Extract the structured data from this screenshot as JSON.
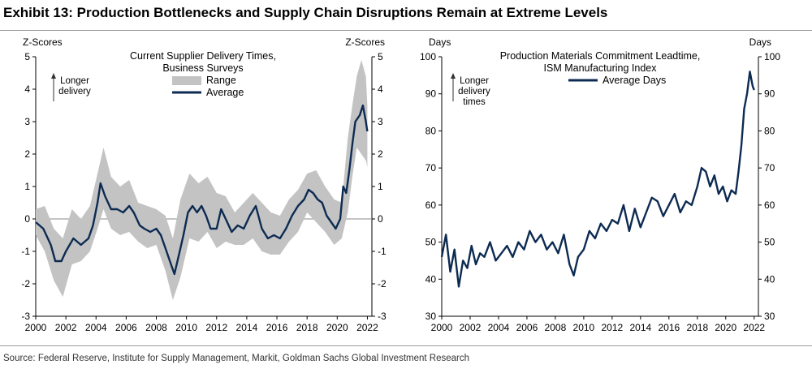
{
  "exhibit_title": "Exhibit 13: Production Bottlenecks and Supply Chain Disruptions Remain at Extreme Levels",
  "source_note": "Source: Federal Reserve, Institute for Supply Management, Markit, Goldman Sachs Global Investment Research",
  "colors": {
    "line": "#0d2b52",
    "range": "#c3c3c3",
    "axis": "#000000",
    "zero": "#888888",
    "rule": "#9a9a9a"
  },
  "chart_data": [
    {
      "type": "area",
      "title": "Current Supplier Delivery Times, Business Surveys",
      "title_lines": [
        "Current Supplier Delivery Times,",
        "Business Surveys"
      ],
      "ylabel_left": "Z-Scores",
      "ylabel_right": "Z-Scores",
      "annotation": [
        "Longer",
        "delivery"
      ],
      "legend": [
        {
          "name": "Range",
          "style": "band"
        },
        {
          "name": "Average",
          "style": "line"
        }
      ],
      "legend_position": "top-center",
      "xlim": [
        2000,
        2022.3
      ],
      "ylim": [
        -3,
        5
      ],
      "xticks": [
        "2000",
        "2002",
        "2004",
        "2006",
        "2008",
        "2010",
        "2012",
        "2014",
        "2016",
        "2018",
        "2020",
        "2022"
      ],
      "yticks": [
        "-3",
        "-2",
        "-1",
        "0",
        "1",
        "2",
        "3",
        "4",
        "5"
      ],
      "zero_line": true,
      "series": [
        {
          "name": "Average",
          "x": [
            2000.0,
            2000.5,
            2001.0,
            2001.3,
            2001.7,
            2002.0,
            2002.5,
            2003.0,
            2003.5,
            2003.8,
            2004.1,
            2004.3,
            2004.6,
            2005.0,
            2005.4,
            2005.8,
            2006.2,
            2006.5,
            2006.9,
            2007.2,
            2007.6,
            2008.0,
            2008.3,
            2008.6,
            2008.9,
            2009.2,
            2009.5,
            2009.8,
            2010.1,
            2010.4,
            2010.7,
            2011.0,
            2011.3,
            2011.6,
            2012.0,
            2012.3,
            2012.7,
            2013.0,
            2013.4,
            2013.8,
            2014.2,
            2014.6,
            2015.0,
            2015.4,
            2015.8,
            2016.2,
            2016.6,
            2017.0,
            2017.4,
            2017.8,
            2018.1,
            2018.4,
            2018.7,
            2019.0,
            2019.3,
            2019.6,
            2019.9,
            2020.2,
            2020.4,
            2020.6,
            2020.8,
            2021.0,
            2021.2,
            2021.5,
            2021.7,
            2021.9,
            2022.0
          ],
          "values": [
            -0.1,
            -0.3,
            -0.8,
            -1.3,
            -1.3,
            -1.0,
            -0.6,
            -0.8,
            -0.6,
            -0.2,
            0.5,
            1.1,
            0.7,
            0.3,
            0.3,
            0.2,
            0.4,
            0.2,
            -0.2,
            -0.3,
            -0.4,
            -0.3,
            -0.5,
            -0.9,
            -1.3,
            -1.7,
            -1.1,
            -0.5,
            0.2,
            0.4,
            0.2,
            0.4,
            0.1,
            -0.3,
            -0.3,
            0.3,
            -0.1,
            -0.4,
            -0.2,
            -0.3,
            0.1,
            0.4,
            -0.3,
            -0.6,
            -0.5,
            -0.6,
            -0.3,
            0.1,
            0.4,
            0.6,
            0.9,
            0.8,
            0.6,
            0.5,
            0.1,
            -0.1,
            -0.3,
            0.0,
            1.0,
            0.8,
            1.5,
            2.3,
            3.0,
            3.2,
            3.5,
            3.0,
            2.7
          ]
        },
        {
          "name": "Range",
          "x": [
            2000.0,
            2000.6,
            2001.2,
            2001.8,
            2002.4,
            2003.0,
            2003.6,
            2004.1,
            2004.5,
            2005.0,
            2005.6,
            2006.2,
            2006.8,
            2007.4,
            2008.0,
            2008.6,
            2009.1,
            2009.6,
            2010.2,
            2010.8,
            2011.4,
            2012.0,
            2012.6,
            2013.2,
            2013.8,
            2014.4,
            2015.0,
            2015.6,
            2016.2,
            2016.8,
            2017.4,
            2018.0,
            2018.6,
            2019.2,
            2019.8,
            2020.3,
            2020.7,
            2021.0,
            2021.3,
            2021.6,
            2021.9,
            2022.0
          ],
          "low": [
            -0.5,
            -1.0,
            -1.9,
            -2.4,
            -1.4,
            -1.3,
            -1.0,
            -0.3,
            0.3,
            -0.3,
            -0.5,
            -0.4,
            -0.7,
            -0.9,
            -0.8,
            -1.6,
            -2.5,
            -1.8,
            -0.6,
            -0.7,
            -0.4,
            -0.9,
            -0.7,
            -0.8,
            -0.8,
            -0.6,
            -1.0,
            -1.1,
            -1.1,
            -0.7,
            -0.4,
            0.2,
            -0.1,
            -0.4,
            -0.8,
            -0.6,
            0.2,
            1.3,
            2.2,
            2.0,
            1.8,
            1.6
          ],
          "high": [
            0.3,
            0.4,
            -0.3,
            -0.6,
            0.3,
            0.0,
            0.4,
            1.4,
            2.2,
            1.3,
            1.0,
            1.2,
            0.5,
            0.4,
            0.3,
            0.1,
            -0.6,
            0.6,
            1.4,
            1.1,
            1.3,
            0.8,
            0.7,
            0.2,
            0.5,
            0.8,
            0.5,
            0.2,
            0.1,
            0.6,
            0.9,
            1.4,
            1.5,
            1.0,
            0.6,
            0.5,
            2.5,
            3.5,
            4.4,
            4.9,
            4.4,
            3.5
          ]
        }
      ]
    },
    {
      "type": "line",
      "title": "Production Materials Commitment Leadtime, ISM Manufacturing Index",
      "title_lines": [
        "Production Materials Commitment Leadtime,",
        "ISM Manufacturing Index"
      ],
      "ylabel_left": "Days",
      "ylabel_right": "Days",
      "annotation": [
        "Longer",
        "delivery",
        "times"
      ],
      "legend": [
        {
          "name": "Average Days",
          "style": "line"
        }
      ],
      "legend_position": "top-center",
      "xlim": [
        2000,
        2022.3
      ],
      "ylim": [
        30,
        100
      ],
      "xticks": [
        "2000",
        "2002",
        "2004",
        "2006",
        "2008",
        "2010",
        "2012",
        "2014",
        "2016",
        "2018",
        "2020",
        "2022"
      ],
      "yticks": [
        "30",
        "40",
        "50",
        "60",
        "70",
        "80",
        "90",
        "100"
      ],
      "series": [
        {
          "name": "Average Days",
          "x": [
            2000.0,
            2000.3,
            2000.6,
            2000.9,
            2001.2,
            2001.5,
            2001.8,
            2002.1,
            2002.4,
            2002.7,
            2003.0,
            2003.4,
            2003.8,
            2004.2,
            2004.6,
            2005.0,
            2005.4,
            2005.8,
            2006.2,
            2006.6,
            2007.0,
            2007.4,
            2007.8,
            2008.2,
            2008.6,
            2009.0,
            2009.3,
            2009.6,
            2010.0,
            2010.4,
            2010.8,
            2011.2,
            2011.6,
            2012.0,
            2012.4,
            2012.8,
            2013.2,
            2013.6,
            2014.0,
            2014.4,
            2014.8,
            2015.2,
            2015.6,
            2016.0,
            2016.4,
            2016.8,
            2017.2,
            2017.6,
            2018.0,
            2018.3,
            2018.6,
            2018.9,
            2019.2,
            2019.5,
            2019.8,
            2020.1,
            2020.4,
            2020.7,
            2020.9,
            2021.1,
            2021.3,
            2021.5,
            2021.7,
            2021.9,
            2022.0
          ],
          "values": [
            46,
            52,
            42,
            48,
            38,
            45,
            43,
            49,
            44,
            47,
            46,
            50,
            45,
            47,
            49,
            46,
            50,
            48,
            53,
            50,
            52,
            48,
            50,
            47,
            52,
            44,
            41,
            46,
            48,
            53,
            51,
            55,
            53,
            56,
            55,
            60,
            53,
            59,
            54,
            58,
            62,
            61,
            57,
            60,
            63,
            58,
            61,
            60,
            65,
            70,
            69,
            65,
            68,
            63,
            65,
            61,
            64,
            63,
            69,
            76,
            86,
            90,
            96,
            92,
            91
          ]
        }
      ]
    }
  ]
}
